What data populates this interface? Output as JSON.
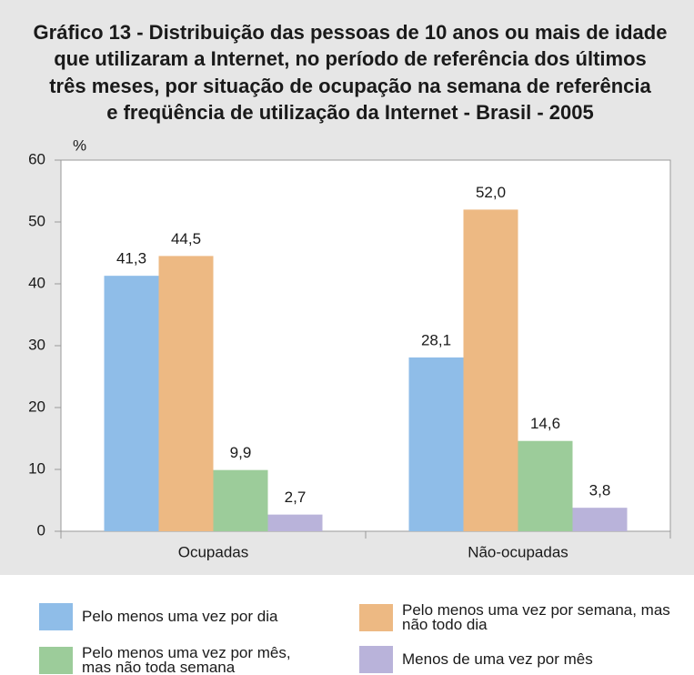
{
  "chart_data": {
    "type": "bar",
    "title": [
      "Gráfico 13 - Distribuição das pessoas de 10 anos ou mais de idade",
      "que utilizaram a Internet, no período de referência dos últimos",
      "três meses, por situação de ocupação na semana de referência",
      "e freqüência de utilização da Internet - Brasil - 2005"
    ],
    "y_label": "%",
    "categories": [
      "Ocupadas",
      "Não-ocupadas"
    ],
    "series": [
      {
        "name": "Pelo menos uma vez por dia",
        "color": "#8fbde8",
        "values": [
          41.3,
          28.1
        ],
        "value_labels": [
          "41,3",
          "28,1"
        ]
      },
      {
        "name": "Pelo menos uma vez por semana, mas não todo dia",
        "color": "#edb983",
        "values": [
          44.5,
          52.0
        ],
        "value_labels": [
          "44,5",
          "52,0"
        ]
      },
      {
        "name": "Pelo menos uma vez por mês, mas não toda semana",
        "color": "#9ccc9a",
        "values": [
          9.9,
          14.6
        ],
        "value_labels": [
          "9,9",
          "14,6"
        ]
      },
      {
        "name": "Menos de uma vez por mês",
        "color": "#b9b3da",
        "values": [
          2.7,
          3.8
        ],
        "value_labels": [
          "2,7",
          "3,8"
        ]
      }
    ],
    "ylim": [
      0,
      60
    ],
    "yticks": [
      0,
      10,
      20,
      30,
      40,
      50,
      60
    ],
    "grid": false
  }
}
